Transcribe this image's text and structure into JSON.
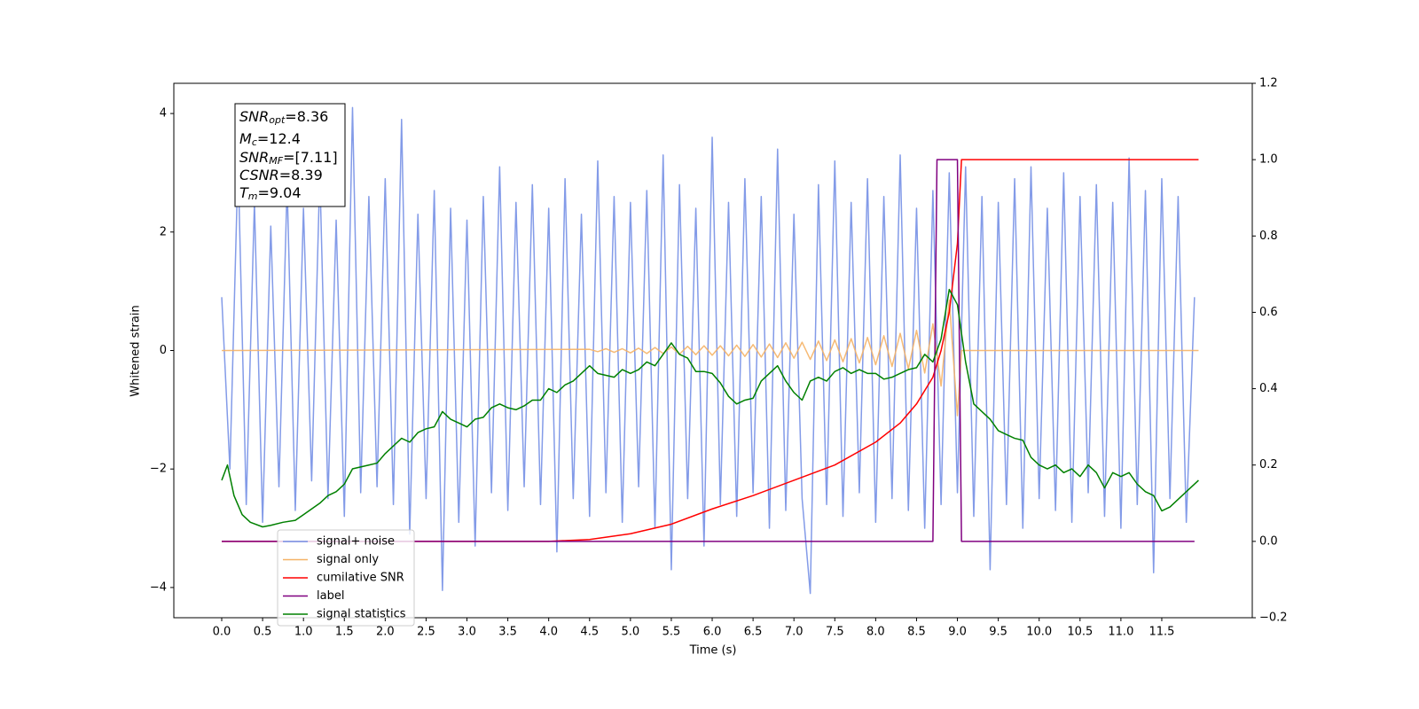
{
  "chart_data": {
    "type": "line",
    "xlabel": "Time (s)",
    "ylabel": "Whitened strain",
    "xlim": [
      -0.586,
      12.607
    ],
    "ylim": [
      -4.51,
      4.51
    ],
    "y2lim": [
      -0.2,
      1.2
    ],
    "xticks": [
      {
        "value": 0,
        "label": "0.0"
      },
      0.5,
      {
        "value": 1,
        "label": "1.0"
      },
      1.5,
      {
        "value": 2,
        "label": "2.0"
      },
      2.5,
      {
        "value": 3,
        "label": "3.0"
      },
      3.5,
      {
        "value": 4,
        "label": "4.0"
      },
      4.5,
      {
        "value": 5,
        "label": "5.0"
      },
      5.5,
      {
        "value": 6,
        "label": "6.0"
      },
      6.5,
      {
        "value": 7,
        "label": "7.0"
      },
      7.5,
      {
        "value": 8,
        "label": "8.0"
      },
      8.5,
      {
        "value": 9,
        "label": "9.0"
      },
      9.5,
      {
        "value": 10,
        "label": "10.0"
      },
      10.5,
      {
        "value": 11,
        "label": "11.0"
      },
      11.5
    ],
    "yticks": [
      {
        "value": -4,
        "label": "−4"
      },
      {
        "value": -2,
        "label": "−2"
      },
      0,
      2,
      4
    ],
    "y2ticks": [
      {
        "value": -0.2,
        "label": "−0.2"
      },
      {
        "value": 0,
        "label": "0.0"
      },
      0.2,
      0.4,
      0.6,
      0.8,
      {
        "value": 1,
        "label": "1.0"
      },
      1.2
    ],
    "grid": false,
    "annotations": [
      {
        "main": "SNR",
        "sub": "opt",
        "rest": "=8.36"
      },
      {
        "main": "M",
        "sub": "c",
        "rest": "=12.4"
      },
      {
        "main": "SNR",
        "sub": "MF",
        "rest": "=[7.11]"
      },
      {
        "main": "CSNR",
        "rest": "=8.39"
      },
      {
        "main": "T",
        "sub": "m",
        "rest": "=9.04"
      }
    ],
    "series": [
      {
        "name": "signal+ noise",
        "color": "#7590e6",
        "axis": "y",
        "x": [
          0,
          0.1,
          0.2,
          0.3,
          0.4,
          0.5,
          0.6,
          0.7,
          0.8,
          0.9,
          1,
          1.1,
          1.2,
          1.3,
          1.4,
          1.5,
          1.6,
          1.7,
          1.8,
          1.9,
          2,
          2.1,
          2.2,
          2.3,
          2.4,
          2.5,
          2.6,
          2.7,
          2.8,
          2.9,
          3,
          3.1,
          3.2,
          3.3,
          3.4,
          3.5,
          3.6,
          3.7,
          3.8,
          3.9,
          4,
          4.1,
          4.2,
          4.3,
          4.4,
          4.5,
          4.6,
          4.7,
          4.8,
          4.9,
          5,
          5.1,
          5.2,
          5.3,
          5.4,
          5.5,
          5.6,
          5.7,
          5.8,
          5.9,
          6,
          6.1,
          6.2,
          6.3,
          6.4,
          6.5,
          6.6,
          6.7,
          6.8,
          6.9,
          7,
          7.1,
          7.2,
          7.3,
          7.4,
          7.5,
          7.6,
          7.7,
          7.8,
          7.9,
          8,
          8.1,
          8.2,
          8.3,
          8.4,
          8.5,
          8.6,
          8.7,
          8.8,
          8.9,
          9,
          9.1,
          9.2,
          9.3,
          9.4,
          9.5,
          9.6,
          9.7,
          9.8,
          9.9,
          10,
          10.1,
          10.2,
          10.3,
          10.4,
          10.5,
          10.6,
          10.7,
          10.8,
          10.9,
          11,
          11.1,
          11.2,
          11.3,
          11.4,
          11.5,
          11.6,
          11.7,
          11.8,
          11.9
        ],
        "values": [
          0.9,
          -2.0,
          3.2,
          -2.6,
          2.5,
          -2.9,
          2.1,
          -2.3,
          2.8,
          -2.7,
          2.4,
          -2.2,
          3.0,
          -2.5,
          2.2,
          -2.8,
          4.1,
          -2.4,
          2.6,
          -2.3,
          2.9,
          -2.6,
          3.9,
          -3.1,
          2.3,
          -2.5,
          2.7,
          -4.05,
          2.4,
          -2.9,
          2.2,
          -3.3,
          2.6,
          -2.4,
          3.1,
          -2.7,
          2.5,
          -2.3,
          2.8,
          -2.6,
          2.4,
          -3.4,
          2.9,
          -2.5,
          2.3,
          -2.8,
          3.2,
          -2.4,
          2.6,
          -2.9,
          2.5,
          -2.3,
          2.7,
          -3.0,
          3.3,
          -3.7,
          2.8,
          -2.5,
          2.4,
          -3.3,
          3.6,
          -2.6,
          2.5,
          -2.8,
          2.9,
          -2.4,
          2.6,
          -3.0,
          3.4,
          -2.7,
          2.3,
          -2.5,
          -4.1,
          2.8,
          -2.6,
          3.2,
          -2.8,
          2.5,
          -2.4,
          2.9,
          -2.9,
          2.6,
          -2.5,
          3.3,
          -2.7,
          2.4,
          -3.0,
          2.7,
          -2.6,
          3.0,
          -2.4,
          3.1,
          -2.8,
          2.6,
          -3.7,
          2.5,
          -2.6,
          2.9,
          -3.0,
          3.1,
          -2.5,
          2.4,
          -2.7,
          3.0,
          -2.9,
          2.6,
          -2.4,
          2.8,
          -2.8,
          2.5,
          -3.0,
          3.25,
          -2.6,
          2.7,
          -3.75,
          2.9,
          -2.5,
          2.6,
          -2.9,
          0.9
        ]
      },
      {
        "name": "signal only",
        "color": "#f5b266",
        "axis": "y",
        "x": [
          0,
          4.5,
          4.6,
          4.7,
          4.8,
          4.9,
          5,
          5.1,
          5.2,
          5.3,
          5.4,
          5.5,
          5.6,
          5.7,
          5.8,
          5.9,
          6,
          6.1,
          6.2,
          6.3,
          6.4,
          6.5,
          6.6,
          6.7,
          6.8,
          6.9,
          7,
          7.1,
          7.2,
          7.3,
          7.4,
          7.5,
          7.6,
          7.7,
          7.8,
          7.9,
          8,
          8.1,
          8.2,
          8.3,
          8.4,
          8.5,
          8.6,
          8.7,
          8.8,
          8.9,
          9,
          9.05,
          11.95
        ],
        "values": [
          0,
          0.02,
          -0.02,
          0.03,
          -0.03,
          0.03,
          -0.04,
          0.04,
          -0.05,
          0.05,
          -0.05,
          0.06,
          -0.06,
          0.07,
          -0.07,
          0.08,
          -0.08,
          0.08,
          -0.09,
          0.09,
          -0.1,
          0.1,
          -0.11,
          0.11,
          -0.12,
          0.13,
          -0.13,
          0.14,
          -0.15,
          0.16,
          -0.17,
          0.18,
          -0.19,
          0.2,
          -0.21,
          0.22,
          -0.24,
          0.25,
          -0.27,
          0.29,
          -0.31,
          0.34,
          -0.38,
          0.45,
          -0.6,
          0.85,
          -1.1,
          0,
          0
        ]
      },
      {
        "name": "cumilative SNR",
        "color": "#ff0000",
        "axis": "y2",
        "x": [
          0,
          4,
          4.5,
          5,
          5.5,
          6,
          6.5,
          7,
          7.5,
          8,
          8.3,
          8.5,
          8.7,
          8.8,
          8.9,
          9,
          9.05,
          11.95
        ],
        "values": [
          0,
          0,
          0.005,
          0.02,
          0.045,
          0.085,
          0.12,
          0.16,
          0.2,
          0.26,
          0.31,
          0.36,
          0.43,
          0.5,
          0.6,
          0.78,
          1,
          1
        ]
      },
      {
        "name": "label",
        "color": "#800080",
        "axis": "y2",
        "x": [
          0,
          8.7,
          8.75,
          9,
          9.05,
          11.9
        ],
        "values": [
          0,
          0,
          1,
          1,
          0,
          0
        ]
      },
      {
        "name": "signal statistics",
        "color": "#008000",
        "axis": "y2",
        "x": [
          0,
          0.07,
          0.15,
          0.25,
          0.35,
          0.5,
          0.6,
          0.75,
          0.9,
          1,
          1.1,
          1.2,
          1.3,
          1.4,
          1.5,
          1.6,
          1.8,
          1.9,
          2,
          2.1,
          2.2,
          2.3,
          2.4,
          2.5,
          2.6,
          2.7,
          2.8,
          2.9,
          3,
          3.1,
          3.2,
          3.3,
          3.4,
          3.5,
          3.6,
          3.7,
          3.8,
          3.9,
          4,
          4.1,
          4.2,
          4.3,
          4.4,
          4.5,
          4.6,
          4.7,
          4.8,
          4.9,
          5,
          5.1,
          5.2,
          5.3,
          5.4,
          5.5,
          5.6,
          5.7,
          5.8,
          5.9,
          6,
          6.1,
          6.2,
          6.3,
          6.4,
          6.5,
          6.6,
          6.7,
          6.8,
          6.9,
          7,
          7.1,
          7.2,
          7.3,
          7.4,
          7.5,
          7.6,
          7.7,
          7.8,
          7.9,
          8,
          8.1,
          8.2,
          8.3,
          8.4,
          8.5,
          8.6,
          8.7,
          8.8,
          8.9,
          9,
          9.1,
          9.2,
          9.3,
          9.4,
          9.5,
          9.6,
          9.7,
          9.8,
          9.9,
          10,
          10.1,
          10.2,
          10.3,
          10.4,
          10.5,
          10.6,
          10.7,
          10.8,
          10.9,
          11,
          11.1,
          11.2,
          11.3,
          11.4,
          11.5,
          11.6,
          11.7,
          11.8,
          11.95
        ],
        "values": [
          0.16,
          0.2,
          0.12,
          0.07,
          0.05,
          0.038,
          0.042,
          0.05,
          0.055,
          0.07,
          0.085,
          0.1,
          0.12,
          0.13,
          0.15,
          0.19,
          0.2,
          0.205,
          0.23,
          0.25,
          0.27,
          0.26,
          0.285,
          0.295,
          0.3,
          0.34,
          0.32,
          0.31,
          0.3,
          0.32,
          0.325,
          0.35,
          0.36,
          0.35,
          0.345,
          0.355,
          0.37,
          0.37,
          0.4,
          0.39,
          0.41,
          0.42,
          0.44,
          0.46,
          0.44,
          0.435,
          0.43,
          0.45,
          0.44,
          0.45,
          0.47,
          0.46,
          0.49,
          0.52,
          0.49,
          0.48,
          0.445,
          0.445,
          0.44,
          0.415,
          0.38,
          0.36,
          0.37,
          0.375,
          0.42,
          0.44,
          0.46,
          0.42,
          0.39,
          0.37,
          0.42,
          0.43,
          0.42,
          0.445,
          0.455,
          0.44,
          0.45,
          0.44,
          0.44,
          0.425,
          0.43,
          0.44,
          0.45,
          0.455,
          0.49,
          0.47,
          0.53,
          0.66,
          0.62,
          0.47,
          0.36,
          0.34,
          0.32,
          0.29,
          0.28,
          0.27,
          0.265,
          0.22,
          0.2,
          0.19,
          0.2,
          0.18,
          0.19,
          0.17,
          0.2,
          0.18,
          0.14,
          0.18,
          0.17,
          0.18,
          0.15,
          0.13,
          0.12,
          0.08,
          0.09,
          0.11,
          0.13,
          0.16
        ]
      }
    ]
  }
}
